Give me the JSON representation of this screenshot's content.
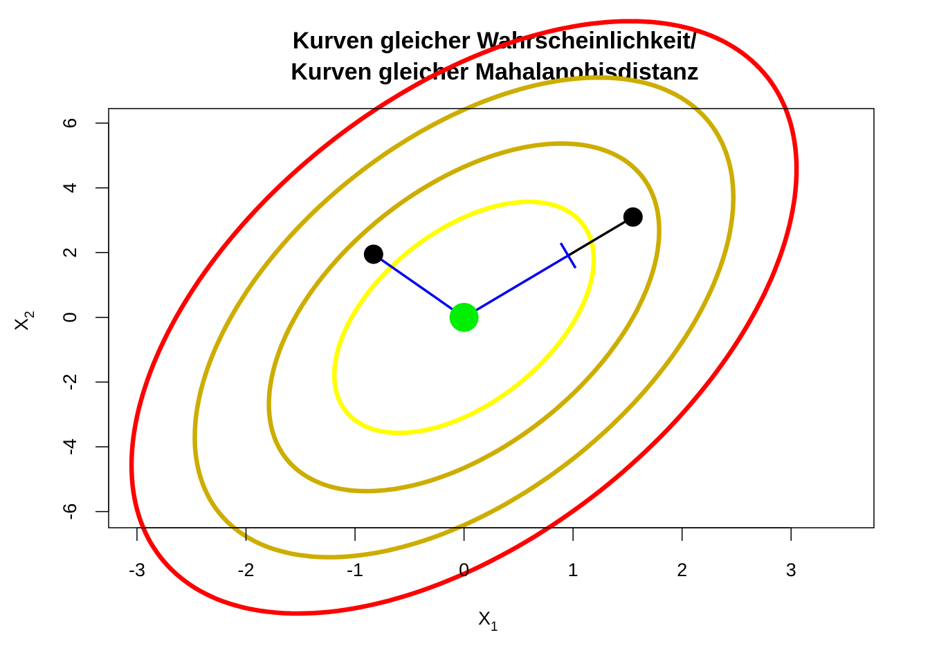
{
  "chart_data": {
    "type": "line",
    "title_line1": "Kurven gleicher Wahrscheinlichkeit/",
    "title_line2": "Kurven gleicher Mahalanobisdistanz",
    "xlabel": {
      "main": "X",
      "sub": "1"
    },
    "ylabel": {
      "main": "X",
      "sub": "2"
    },
    "xlim": [
      -3.26,
      3.76
    ],
    "ylim": [
      -6.5,
      6.45
    ],
    "x_ticks": [
      -3,
      -2,
      -1,
      0,
      1,
      2,
      3
    ],
    "y_ticks": [
      -6,
      -4,
      -2,
      0,
      2,
      4,
      6
    ],
    "grid": false,
    "covariance": [
      [
        1,
        1.5
      ],
      [
        1.5,
        9
      ]
    ],
    "center": [
      0,
      0
    ],
    "ellipses": [
      {
        "mahalanobis_distance": 1.19,
        "color": "#FFFF00"
      },
      {
        "mahalanobis_distance": 1.79,
        "color": "#CDAD00"
      },
      {
        "mahalanobis_distance": 2.47,
        "color": "#CDAD00"
      },
      {
        "mahalanobis_distance": 3.05,
        "color": "#FF0000"
      }
    ],
    "points": [
      {
        "x": 0,
        "y": 0,
        "color": "#00EE00",
        "role": "center"
      },
      {
        "x": -0.83,
        "y": 1.95,
        "color": "#000000",
        "role": "observation"
      },
      {
        "x": 1.55,
        "y": 3.1,
        "color": "#000000",
        "role": "observation"
      }
    ],
    "segments": [
      {
        "from": [
          0,
          0
        ],
        "to": [
          -0.83,
          1.95
        ],
        "color": "#0000EE"
      },
      {
        "from": [
          0,
          0
        ],
        "to": [
          0.955,
          1.91
        ],
        "color": "#0000EE"
      },
      {
        "from": [
          0.955,
          1.91
        ],
        "to": [
          1.55,
          3.1
        ],
        "color": "#000000"
      }
    ],
    "tick_mark": {
      "x": 0.955,
      "y": 1.91,
      "color": "#0000EE"
    }
  }
}
